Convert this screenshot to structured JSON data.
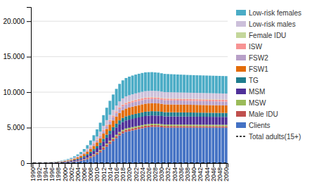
{
  "chart_data": {
    "type": "bar",
    "stacked": true,
    "grid": true,
    "legend": "right",
    "x": [
      1990,
      1991,
      1992,
      1993,
      1994,
      1995,
      1996,
      1997,
      1998,
      1999,
      2000,
      2001,
      2002,
      2003,
      2004,
      2005,
      2006,
      2007,
      2008,
      2009,
      2010,
      2011,
      2012,
      2013,
      2014,
      2015,
      2016,
      2017,
      2018,
      2019,
      2020,
      2021,
      2022,
      2023,
      2024,
      2025,
      2026,
      2027,
      2028,
      2029,
      2030,
      2031,
      2032,
      2033,
      2034,
      2035,
      2036,
      2037,
      2038,
      2039,
      2040,
      2041,
      2042,
      2043,
      2044,
      2045,
      2046,
      2047,
      2048,
      2049,
      2050
    ],
    "xlim": [
      1989.5,
      2050.5
    ],
    "xticks": [
      1990,
      1992,
      1994,
      1996,
      1998,
      2000,
      2002,
      2004,
      2006,
      2008,
      2010,
      2012,
      2014,
      2016,
      2018,
      2020,
      2022,
      2024,
      2026,
      2028,
      2030,
      2032,
      2034,
      2036,
      2038,
      2040,
      2042,
      2044,
      2046,
      2048,
      2050
    ],
    "ylim": [
      0,
      22000
    ],
    "yticks": [
      0,
      {
        "value": 5000,
        "label": "5.000"
      },
      {
        "value": 10000,
        "label": "10.000"
      },
      {
        "value": 15000,
        "label": "15.000"
      },
      {
        "value": 20000,
        "label": "20.000"
      }
    ],
    "series": [
      {
        "name": "Clients",
        "color": "#4472C4",
        "values": [
          10,
          12,
          15,
          18,
          22,
          27,
          32,
          40,
          50,
          65,
          80,
          100,
          130,
          180,
          240,
          320,
          420,
          560,
          750,
          950,
          1200,
          1500,
          1900,
          2300,
          2700,
          3100,
          3500,
          3900,
          4200,
          4400,
          4500,
          4600,
          4700,
          4800,
          4900,
          5000,
          5050,
          5100,
          5100,
          5100,
          5050,
          5000,
          5000,
          5000,
          5000,
          5000,
          5000,
          5000,
          5000,
          5000,
          5000,
          5000,
          5000,
          5000,
          5000,
          5000,
          5000,
          5000,
          5000,
          5000,
          5000
        ]
      },
      {
        "name": "Male IDU",
        "color": "#C0504D",
        "values": [
          2,
          3,
          4,
          5,
          6,
          8,
          10,
          12,
          15,
          18,
          22,
          28,
          36,
          48,
          62,
          80,
          100,
          130,
          160,
          190,
          220,
          250,
          280,
          300,
          310,
          310,
          305,
          300,
          295,
          290,
          285,
          280,
          275,
          270,
          265,
          260,
          255,
          250,
          245,
          242,
          240,
          238,
          236,
          234,
          232,
          230,
          228,
          226,
          224,
          222,
          220,
          218,
          216,
          214,
          212,
          210,
          208,
          206,
          204,
          202,
          200
        ]
      },
      {
        "name": "MSW",
        "color": "#9BBB59",
        "values": [
          1,
          1,
          2,
          2,
          3,
          4,
          5,
          6,
          8,
          10,
          12,
          15,
          20,
          26,
          34,
          44,
          55,
          68,
          82,
          96,
          110,
          125,
          140,
          155,
          168,
          178,
          185,
          190,
          193,
          195,
          196,
          197,
          198,
          199,
          200,
          200,
          200,
          200,
          200,
          200,
          200,
          200,
          200,
          200,
          200,
          200,
          200,
          200,
          200,
          200,
          200,
          200,
          200,
          200,
          200,
          200,
          200,
          200,
          200,
          200,
          200
        ]
      },
      {
        "name": "MSM",
        "color": "#4F3099",
        "values": [
          5,
          7,
          9,
          12,
          16,
          20,
          26,
          33,
          42,
          54,
          70,
          90,
          115,
          145,
          180,
          220,
          270,
          330,
          400,
          470,
          550,
          640,
          730,
          820,
          900,
          970,
          1030,
          1080,
          1110,
          1130,
          1150,
          1160,
          1170,
          1175,
          1180,
          1180,
          1175,
          1170,
          1165,
          1160,
          1155,
          1150,
          1148,
          1146,
          1144,
          1142,
          1140,
          1138,
          1136,
          1134,
          1132,
          1130,
          1128,
          1126,
          1124,
          1122,
          1120,
          1118,
          1116,
          1114,
          1112
        ]
      },
      {
        "name": "TG",
        "color": "#1F7C8E",
        "values": [
          3,
          4,
          5,
          7,
          9,
          11,
          14,
          18,
          23,
          29,
          37,
          48,
          61,
          78,
          98,
          122,
          150,
          183,
          220,
          258,
          300,
          345,
          390,
          435,
          475,
          510,
          540,
          560,
          575,
          585,
          592,
          597,
          600,
          602,
          603,
          603,
          602,
          600,
          598,
          596,
          594,
          592,
          590,
          588,
          586,
          584,
          582,
          580,
          578,
          576,
          574,
          572,
          570,
          568,
          566,
          564,
          562,
          560,
          558,
          556,
          554
        ]
      },
      {
        "name": "FSW1",
        "color": "#E36C09",
        "values": [
          5,
          7,
          9,
          12,
          16,
          20,
          26,
          33,
          43,
          56,
          72,
          92,
          117,
          148,
          185,
          228,
          278,
          338,
          405,
          475,
          550,
          635,
          720,
          805,
          880,
          945,
          1000,
          1045,
          1075,
          1095,
          1110,
          1120,
          1128,
          1133,
          1135,
          1135,
          1130,
          1125,
          1120,
          1115,
          1110,
          1105,
          1103,
          1101,
          1099,
          1097,
          1095,
          1093,
          1091,
          1089,
          1087,
          1085,
          1083,
          1081,
          1079,
          1077,
          1075,
          1073,
          1071,
          1069,
          1067
        ]
      },
      {
        "name": "FSW2",
        "color": "#B8A0C8",
        "values": [
          2,
          3,
          4,
          5,
          7,
          9,
          11,
          14,
          18,
          23,
          30,
          39,
          50,
          64,
          81,
          102,
          128,
          158,
          192,
          228,
          268,
          312,
          358,
          403,
          445,
          482,
          514,
          540,
          558,
          570,
          578,
          584,
          588,
          590,
          591,
          590,
          588,
          586,
          583,
          580,
          577,
          574,
          572,
          570,
          568,
          566,
          564,
          562,
          560,
          558,
          556,
          554,
          552,
          550,
          548,
          546,
          544,
          542,
          540,
          538,
          536
        ]
      },
      {
        "name": "ISW",
        "color": "#F79494",
        "values": [
          1,
          1,
          2,
          2,
          3,
          4,
          5,
          6,
          8,
          10,
          13,
          17,
          22,
          28,
          35,
          44,
          54,
          67,
          81,
          96,
          112,
          130,
          148,
          167,
          184,
          198,
          210,
          220,
          228,
          233,
          237,
          240,
          242,
          243,
          244,
          244,
          244,
          244,
          243,
          242,
          241,
          240,
          240,
          240,
          240,
          240,
          240,
          240,
          240,
          240,
          240,
          240,
          240,
          240,
          240,
          240,
          240,
          240,
          240,
          240,
          240
        ]
      },
      {
        "name": "Female IDU",
        "color": "#C4D79B",
        "values": [
          0,
          0,
          0,
          0,
          1,
          1,
          1,
          1,
          2,
          2,
          3,
          4,
          5,
          6,
          8,
          10,
          12,
          15,
          18,
          21,
          24,
          28,
          32,
          36,
          39,
          42,
          44,
          46,
          47,
          48,
          49,
          50,
          50,
          50,
          50,
          50,
          50,
          50,
          50,
          50,
          50,
          50,
          50,
          50,
          50,
          50,
          50,
          50,
          50,
          50,
          50,
          50,
          50,
          50,
          50,
          50,
          50,
          50,
          50,
          50,
          50
        ]
      },
      {
        "name": "Low-risk males",
        "color": "#CCC0DA",
        "values": [
          2,
          3,
          4,
          5,
          7,
          9,
          11,
          14,
          18,
          23,
          30,
          39,
          51,
          67,
          88,
          115,
          150,
          196,
          255,
          325,
          400,
          480,
          560,
          635,
          700,
          755,
          795,
          825,
          845,
          860,
          868,
          874,
          878,
          880,
          881,
          880,
          878,
          875,
          872,
          869,
          866,
          863,
          861,
          860,
          859,
          858,
          857,
          856,
          855,
          854,
          853,
          852,
          851,
          850,
          849,
          848,
          847,
          846,
          845,
          844,
          843
        ]
      },
      {
        "name": "Low-risk females",
        "color": "#4BACC6",
        "values": [
          5,
          7,
          9,
          12,
          16,
          20,
          26,
          33,
          43,
          56,
          73,
          95,
          124,
          162,
          213,
          280,
          368,
          484,
          635,
          820,
          1020,
          1250,
          1500,
          1750,
          1980,
          2180,
          2340,
          2460,
          2540,
          2590,
          2620,
          2640,
          2650,
          2655,
          2655,
          2650,
          2640,
          2625,
          2610,
          2595,
          2580,
          2565,
          2555,
          2545,
          2535,
          2525,
          2515,
          2505,
          2495,
          2490,
          2485,
          2480,
          2478,
          2476,
          2474,
          2472,
          2470,
          2468,
          2466,
          2464,
          2462
        ]
      },
      {
        "name": "Total adults(15+)",
        "color": "black",
        "type": "line",
        "line_style": "dashed",
        "values": [
          0,
          0,
          0,
          0,
          0,
          0,
          0,
          0,
          0,
          0,
          0,
          0,
          0,
          0,
          0,
          0,
          0,
          0,
          0,
          0,
          0,
          0,
          0,
          0,
          0,
          0,
          0,
          0,
          0,
          0,
          0,
          0,
          0,
          0,
          0,
          0,
          0,
          0,
          0,
          0,
          0,
          0,
          0,
          0,
          0,
          0,
          0,
          0,
          0,
          0,
          0,
          0,
          0,
          0,
          0,
          0,
          0,
          0,
          0,
          0,
          0
        ]
      }
    ]
  }
}
